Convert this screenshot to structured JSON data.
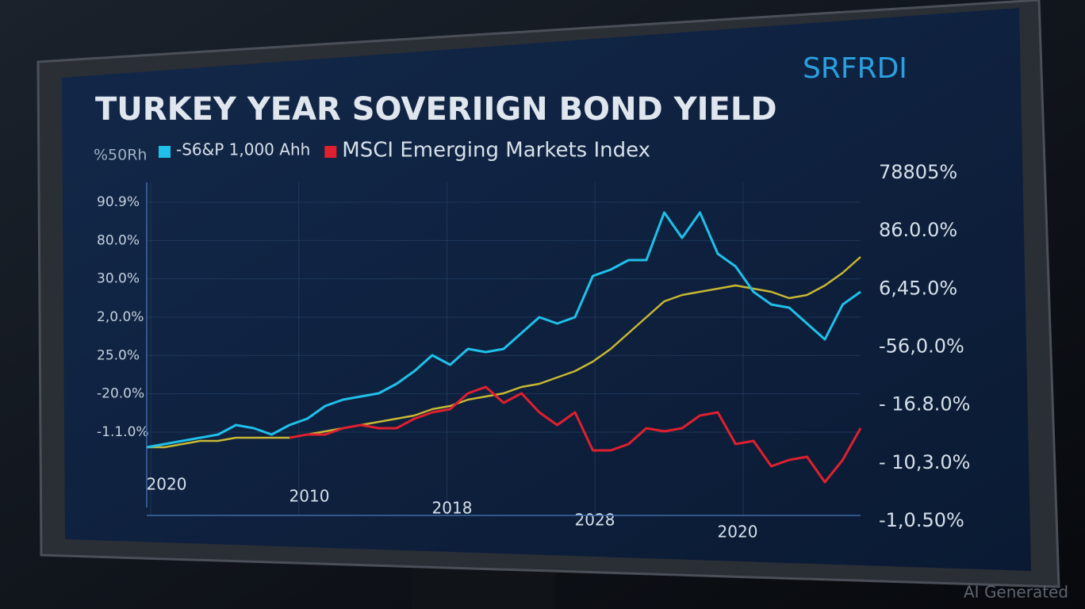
{
  "chart_data": {
    "type": "line",
    "title": "TURKEY YEAR SOVERIIGN BOND YIELD",
    "logo": "SRFRDI",
    "legend_prefix": "%50Rh",
    "watermark": "AI Generated",
    "x": [
      0,
      1,
      2,
      3,
      4,
      5,
      6,
      7,
      8,
      9,
      10,
      11,
      12,
      13,
      14,
      15,
      16,
      17,
      18,
      19,
      20,
      21,
      22,
      23,
      24,
      25,
      26,
      27,
      28,
      29,
      30,
      31,
      32,
      33,
      34,
      35,
      36,
      37,
      38,
      39,
      40
    ],
    "xlim": [
      0,
      40
    ],
    "ylim": [
      0,
      100
    ],
    "x_tick_labels": [
      "2020",
      "2010",
      "2018",
      "2028",
      "2020"
    ],
    "left_axis_labels": [
      "90.9%",
      "80.0%",
      "30.0%",
      "2,0.0%",
      "25.0%",
      "-20.0%",
      "-1.1.0%"
    ],
    "right_axis_labels": [
      "78805%",
      "86.0.0%",
      "6,45.0%",
      "-56,0.0%",
      "- 16.8.0%",
      "- 10,3.0%",
      "-1,0.50%"
    ],
    "grid": true,
    "series": [
      {
        "name": "-S6&P 1,000 Ahh",
        "color": "#1fc0ea",
        "legend": true,
        "values": [
          19,
          20,
          21,
          22,
          23,
          26,
          25,
          23,
          26,
          28,
          32,
          34,
          35,
          36,
          39,
          43,
          48,
          45,
          50,
          49,
          50,
          55,
          60,
          58,
          60,
          73,
          75,
          78,
          78,
          93,
          85,
          93,
          80,
          76,
          68,
          64,
          63,
          58,
          53,
          64,
          68
        ]
      },
      {
        "name": "MSCI Emerging Markets Index",
        "color": "#e0202e",
        "legend": true,
        "values": [
          null,
          null,
          null,
          null,
          null,
          null,
          null,
          null,
          22,
          23,
          23,
          25,
          26,
          25,
          25,
          28,
          30,
          31,
          36,
          38,
          33,
          36,
          30,
          26,
          30,
          18,
          18,
          20,
          25,
          24,
          25,
          29,
          30,
          20,
          21,
          13,
          15,
          16,
          8,
          15,
          25
        ]
      },
      {
        "color": "#c8b832",
        "legend": false,
        "values": [
          19,
          19,
          20,
          21,
          21,
          22,
          22,
          22,
          22,
          23,
          24,
          25,
          26,
          27,
          28,
          29,
          31,
          32,
          34,
          35,
          36,
          38,
          39,
          41,
          43,
          46,
          50,
          55,
          60,
          65,
          67,
          68,
          69,
          70,
          69,
          68,
          66,
          67,
          70,
          74,
          79
        ]
      }
    ]
  }
}
